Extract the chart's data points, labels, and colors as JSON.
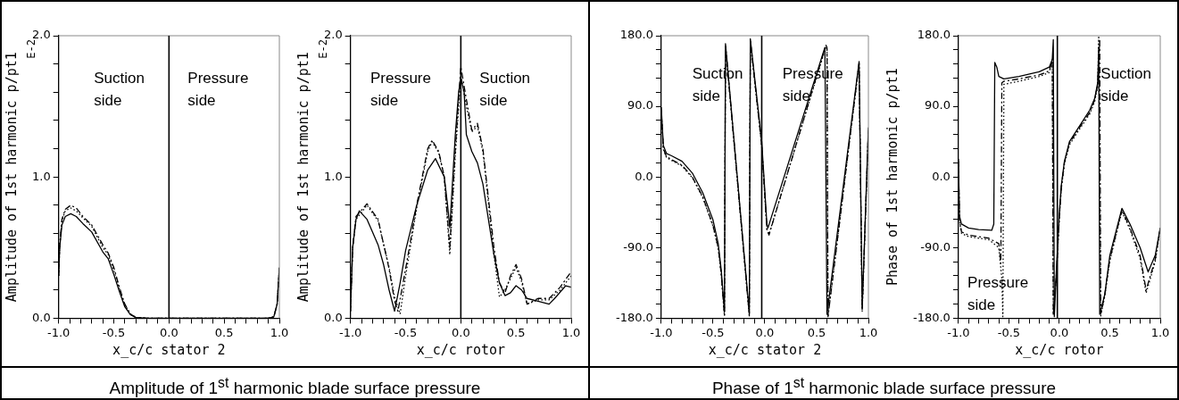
{
  "chart_data": [
    {
      "type": "line",
      "title": "Amplitude of 1$^{st}$ harmonic blade surface pressure",
      "xlabel": "x_c/c stator 2",
      "ylabel": "Amplitude of 1st harmonic p/pt1",
      "annotations": [
        "E-2",
        "Suction side",
        "Pressure side"
      ],
      "xlim": [
        -1,
        1
      ],
      "ylim": [
        0,
        2
      ],
      "xticks": [
        {
          "value": -1,
          "label": "-1.0"
        },
        {
          "value": -0.9,
          "label": null
        },
        {
          "value": -0.8,
          "label": null
        },
        {
          "value": -0.7,
          "label": null
        },
        {
          "value": -0.6,
          "label": null
        },
        {
          "value": -0.5,
          "label": "-0.5"
        },
        {
          "value": -0.4,
          "label": null
        },
        {
          "value": -0.3,
          "label": null
        },
        {
          "value": -0.2,
          "label": null
        },
        {
          "value": -0.1,
          "label": null
        },
        {
          "value": 0,
          "label": "0.0"
        },
        {
          "value": 0.1,
          "label": null
        },
        {
          "value": 0.2,
          "label": null
        },
        {
          "value": 0.3,
          "label": null
        },
        {
          "value": 0.4,
          "label": null
        },
        {
          "value": 0.5,
          "label": "0.5"
        },
        {
          "value": 0.6,
          "label": null
        },
        {
          "value": 0.7,
          "label": null
        },
        {
          "value": 0.8,
          "label": null
        },
        {
          "value": 0.9,
          "label": null
        },
        {
          "value": 1,
          "label": "1.0"
        }
      ],
      "yticks": [
        {
          "value": 0,
          "label": "0.0"
        },
        {
          "value": 0.2,
          "label": null
        },
        {
          "value": 0.4,
          "label": null
        },
        {
          "value": 0.6,
          "label": null
        },
        {
          "value": 0.8,
          "label": null
        },
        {
          "value": 1,
          "label": "1.0"
        },
        {
          "value": 1.2,
          "label": null
        },
        {
          "value": 1.4,
          "label": null
        },
        {
          "value": 1.6,
          "label": null
        },
        {
          "value": 1.8,
          "label": null
        },
        {
          "value": 2,
          "label": "2.0"
        }
      ],
      "ref_lines": [
        {
          "axis": "x",
          "value": 0,
          "color": "#000000"
        }
      ],
      "series": [
        {
          "color": "#000000",
          "line_style": "solid",
          "x": [
            -1,
            -0.99,
            -0.97,
            -0.94,
            -0.89,
            -0.84,
            -0.78,
            -0.7,
            -0.6,
            -0.55,
            -0.5,
            -0.45,
            -0.4,
            -0.35,
            -0.3,
            -0.2,
            0,
            0.5,
            0.9,
            0.95,
            0.98,
            1
          ],
          "values": [
            0.3,
            0.5,
            0.66,
            0.72,
            0.74,
            0.72,
            0.67,
            0.61,
            0.47,
            0.42,
            0.31,
            0.19,
            0.08,
            0.025,
            0.005,
            0,
            0,
            0,
            0,
            0.01,
            0.1,
            0.36
          ]
        },
        {
          "color": "#000000",
          "line_style": "dashed",
          "x": [
            -1,
            -0.99,
            -0.97,
            -0.94,
            -0.89,
            -0.84,
            -0.78,
            -0.7,
            -0.6,
            -0.55,
            -0.5,
            -0.45,
            -0.4,
            -0.35,
            -0.3,
            -0.2,
            0,
            0.5,
            0.9,
            0.95,
            0.98,
            1
          ],
          "values": [
            0.3,
            0.52,
            0.7,
            0.77,
            0.8,
            0.78,
            0.72,
            0.66,
            0.52,
            0.46,
            0.36,
            0.22,
            0.1,
            0.03,
            0.005,
            0,
            0,
            0,
            0,
            0.01,
            0.1,
            0.36
          ]
        },
        {
          "color": "#000000",
          "line_style": "dotted",
          "x": [
            -1,
            -0.99,
            -0.97,
            -0.94,
            -0.89,
            -0.84,
            -0.78,
            -0.7,
            -0.6,
            -0.55,
            -0.5,
            -0.45,
            -0.4,
            -0.35,
            -0.3,
            -0.2,
            0,
            0.5,
            0.9,
            0.95,
            0.98,
            1
          ],
          "values": [
            0.3,
            0.51,
            0.69,
            0.76,
            0.78,
            0.76,
            0.71,
            0.65,
            0.5,
            0.45,
            0.34,
            0.21,
            0.09,
            0.03,
            0.005,
            0,
            0,
            0,
            0,
            0.01,
            0.1,
            0.36
          ]
        }
      ]
    },
    {
      "type": "line",
      "xlabel": "x_c/c rotor",
      "ylabel": "Amplitude of 1st harmonic p/pt1",
      "annotations": [
        "E-2",
        "Pressure side",
        "Suction side"
      ],
      "xlim": [
        -1,
        1
      ],
      "ylim": [
        0,
        2
      ],
      "xticks": [
        {
          "value": -1,
          "label": "-1.0"
        },
        {
          "value": -0.9,
          "label": null
        },
        {
          "value": -0.8,
          "label": null
        },
        {
          "value": -0.7,
          "label": null
        },
        {
          "value": -0.6,
          "label": null
        },
        {
          "value": -0.5,
          "label": "-0.5"
        },
        {
          "value": -0.4,
          "label": null
        },
        {
          "value": -0.3,
          "label": null
        },
        {
          "value": -0.2,
          "label": null
        },
        {
          "value": -0.1,
          "label": null
        },
        {
          "value": 0,
          "label": "0.0"
        },
        {
          "value": 0.1,
          "label": null
        },
        {
          "value": 0.2,
          "label": null
        },
        {
          "value": 0.3,
          "label": null
        },
        {
          "value": 0.4,
          "label": null
        },
        {
          "value": 0.5,
          "label": "0.5"
        },
        {
          "value": 0.6,
          "label": null
        },
        {
          "value": 0.7,
          "label": null
        },
        {
          "value": 0.8,
          "label": null
        },
        {
          "value": 0.9,
          "label": null
        },
        {
          "value": 1,
          "label": "1.0"
        }
      ],
      "yticks": [
        {
          "value": 0,
          "label": "0.0"
        },
        {
          "value": 0.2,
          "label": null
        },
        {
          "value": 0.4,
          "label": null
        },
        {
          "value": 0.6,
          "label": null
        },
        {
          "value": 0.8,
          "label": null
        },
        {
          "value": 1,
          "label": "1.0"
        },
        {
          "value": 1.2,
          "label": null
        },
        {
          "value": 1.4,
          "label": null
        },
        {
          "value": 1.6,
          "label": null
        },
        {
          "value": 1.8,
          "label": null
        },
        {
          "value": 2,
          "label": "2.0"
        }
      ],
      "ref_lines": [
        {
          "axis": "x",
          "value": 0,
          "color": "#000000"
        }
      ],
      "series": [
        {
          "color": "#000000",
          "line_style": "solid",
          "x": [
            -1,
            -0.98,
            -0.95,
            -0.92,
            -0.85,
            -0.75,
            -0.7,
            -0.65,
            -0.6,
            -0.55,
            -0.5,
            -0.4,
            -0.3,
            -0.23,
            -0.15,
            -0.12,
            -0.1,
            -0.05,
            -0.02,
            0,
            0.03,
            0.05,
            0.1,
            0.15,
            0.2,
            0.25,
            0.3,
            0.35,
            0.4,
            0.45,
            0.5,
            0.55,
            0.6,
            0.7,
            0.8,
            0.85,
            0.95,
            1
          ],
          "values": [
            0.05,
            0.5,
            0.7,
            0.76,
            0.7,
            0.52,
            0.38,
            0.2,
            0.05,
            0.25,
            0.48,
            0.8,
            1.05,
            1.13,
            1.0,
            0.8,
            0.64,
            1.3,
            1.6,
            1.7,
            1.6,
            1.3,
            1.18,
            1.1,
            0.95,
            0.7,
            0.45,
            0.25,
            0.16,
            0.18,
            0.23,
            0.2,
            0.14,
            0.12,
            0.1,
            0.14,
            0.23,
            0.22
          ]
        },
        {
          "color": "#000000",
          "line_style": "dashed",
          "x": [
            -1,
            -0.98,
            -0.95,
            -0.85,
            -0.75,
            -0.65,
            -0.6,
            -0.57,
            -0.5,
            -0.4,
            -0.3,
            -0.26,
            -0.2,
            -0.15,
            -0.1,
            -0.05,
            0,
            0.05,
            0.1,
            0.15,
            0.2,
            0.3,
            0.35,
            0.4,
            0.45,
            0.5,
            0.55,
            0.6,
            0.7,
            0.8,
            0.9,
            1
          ],
          "values": [
            0.05,
            0.5,
            0.72,
            0.81,
            0.7,
            0.35,
            0.12,
            0.05,
            0.35,
            0.8,
            1.2,
            1.26,
            1.18,
            1.0,
            0.5,
            1.2,
            1.78,
            1.55,
            1.33,
            1.38,
            1.2,
            0.5,
            0.25,
            0.18,
            0.3,
            0.38,
            0.28,
            0.1,
            0.14,
            0.14,
            0.22,
            0.33
          ]
        },
        {
          "color": "#000000",
          "line_style": "dotted",
          "x": [
            -1,
            -0.98,
            -0.95,
            -0.85,
            -0.75,
            -0.65,
            -0.6,
            -0.55,
            -0.5,
            -0.4,
            -0.3,
            -0.26,
            -0.2,
            -0.15,
            -0.1,
            -0.05,
            0,
            0.05,
            0.1,
            0.15,
            0.2,
            0.3,
            0.35,
            0.4,
            0.45,
            0.5,
            0.55,
            0.6,
            0.7,
            0.8,
            0.9,
            1
          ],
          "values": [
            0.05,
            0.5,
            0.7,
            0.8,
            0.69,
            0.36,
            0.15,
            0.03,
            0.3,
            0.78,
            1.18,
            1.25,
            1.17,
            1.0,
            0.45,
            1.15,
            1.72,
            1.5,
            1.32,
            1.36,
            1.18,
            0.45,
            0.15,
            0.2,
            0.28,
            0.36,
            0.26,
            0.1,
            0.13,
            0.13,
            0.2,
            0.3
          ]
        }
      ]
    },
    {
      "type": "line",
      "title": "Phase of 1$^{st}$ harmonic blade surface pressure",
      "xlabel": "x_c/c stator 2",
      "annotations": [
        "Suction side",
        "Pressure side"
      ],
      "xlim": [
        -1,
        1
      ],
      "ylim": [
        -180,
        180
      ],
      "xticks": [
        {
          "value": -1,
          "label": "-1.0"
        },
        {
          "value": -0.9,
          "label": null
        },
        {
          "value": -0.8,
          "label": null
        },
        {
          "value": -0.7,
          "label": null
        },
        {
          "value": -0.6,
          "label": null
        },
        {
          "value": -0.5,
          "label": "-0.5"
        },
        {
          "value": -0.4,
          "label": null
        },
        {
          "value": -0.3,
          "label": null
        },
        {
          "value": -0.2,
          "label": null
        },
        {
          "value": -0.1,
          "label": null
        },
        {
          "value": 0,
          "label": "0.0"
        },
        {
          "value": 0.1,
          "label": null
        },
        {
          "value": 0.2,
          "label": null
        },
        {
          "value": 0.3,
          "label": null
        },
        {
          "value": 0.4,
          "label": null
        },
        {
          "value": 0.5,
          "label": "0.5"
        },
        {
          "value": 0.6,
          "label": null
        },
        {
          "value": 0.7,
          "label": null
        },
        {
          "value": 0.8,
          "label": null
        },
        {
          "value": 0.9,
          "label": null
        },
        {
          "value": 1,
          "label": "1.0"
        }
      ],
      "yticks": [
        {
          "value": -180,
          "label": "-180.0"
        },
        {
          "value": -162,
          "label": null
        },
        {
          "value": -144,
          "label": null
        },
        {
          "value": -126,
          "label": null
        },
        {
          "value": -108,
          "label": null
        },
        {
          "value": -90,
          "label": "-90.0"
        },
        {
          "value": -72,
          "label": null
        },
        {
          "value": -54,
          "label": null
        },
        {
          "value": -36,
          "label": null
        },
        {
          "value": -18,
          "label": null
        },
        {
          "value": 0,
          "label": "0.0"
        },
        {
          "value": 18,
          "label": null
        },
        {
          "value": 36,
          "label": null
        },
        {
          "value": 54,
          "label": null
        },
        {
          "value": 72,
          "label": null
        },
        {
          "value": 90,
          "label": "90.0"
        },
        {
          "value": 108,
          "label": null
        },
        {
          "value": 126,
          "label": null
        },
        {
          "value": 144,
          "label": null
        },
        {
          "value": 162,
          "label": null
        },
        {
          "value": 180,
          "label": "180.0"
        }
      ],
      "ref_lines": [
        {
          "axis": "x",
          "value": -0.03,
          "color": "#000000"
        }
      ],
      "series": [
        {
          "color": "#000000",
          "line_style": "solid",
          "x": [
            -1,
            -0.98,
            -0.95,
            -0.9,
            -0.8,
            -0.7,
            -0.6,
            -0.5,
            -0.45,
            -0.42,
            -0.39,
            -0.38,
            -0.15,
            -0.14,
            -0.03,
            0.02,
            0.03,
            0.57,
            0.58,
            0.6,
            0.91,
            0.94,
            1
          ],
          "values": [
            89,
            40,
            30,
            27,
            20,
            5,
            -20,
            -55,
            -85,
            -120,
            -172,
            170,
            -173,
            176,
            45,
            -60,
            -65,
            161,
            165,
            -175,
            147,
            -167,
            63
          ]
        },
        {
          "color": "#000000",
          "line_style": "dashed",
          "x": [
            -1,
            -0.98,
            -0.95,
            -0.9,
            -0.8,
            -0.7,
            -0.6,
            -0.5,
            -0.45,
            -0.42,
            -0.39,
            -0.38,
            -0.15,
            -0.14,
            -0.03,
            0.02,
            0.04,
            0.59,
            0.6,
            0.61,
            0.91,
            0.94,
            1
          ],
          "values": [
            85,
            36,
            26,
            22,
            15,
            0,
            -25,
            -62,
            -90,
            -125,
            -176,
            168,
            -176,
            174,
            40,
            -66,
            -74,
            168,
            165,
            -178,
            145,
            -170,
            60
          ]
        },
        {
          "color": "#000000",
          "line_style": "dotted",
          "x": [
            -1,
            -0.98,
            -0.95,
            -0.9,
            -0.8,
            -0.7,
            -0.6,
            -0.5,
            -0.45,
            -0.42,
            -0.39,
            -0.38,
            -0.15,
            -0.14,
            -0.03,
            0.02,
            0.04,
            0.59,
            0.6,
            0.61,
            0.91,
            0.94,
            1
          ],
          "values": [
            85,
            35,
            25,
            21,
            14,
            -1,
            -26,
            -63,
            -91,
            -126,
            -177,
            167,
            -177,
            173,
            39,
            -67,
            -73,
            166,
            163,
            -177,
            144,
            -171,
            58
          ]
        }
      ]
    },
    {
      "type": "line",
      "xlabel": "x_c/c rotor",
      "ylabel": "Phase of 1st harmonic p/pt1",
      "annotations": [
        "Suction side",
        "Pressure side"
      ],
      "xlim": [
        -1,
        1
      ],
      "ylim": [
        -180,
        180
      ],
      "xticks": [
        {
          "value": -1,
          "label": "-1.0"
        },
        {
          "value": -0.9,
          "label": null
        },
        {
          "value": -0.8,
          "label": null
        },
        {
          "value": -0.7,
          "label": null
        },
        {
          "value": -0.6,
          "label": null
        },
        {
          "value": -0.5,
          "label": "-0.5"
        },
        {
          "value": -0.4,
          "label": null
        },
        {
          "value": -0.3,
          "label": null
        },
        {
          "value": -0.2,
          "label": null
        },
        {
          "value": -0.1,
          "label": null
        },
        {
          "value": 0,
          "label": "0.0"
        },
        {
          "value": 0.1,
          "label": null
        },
        {
          "value": 0.2,
          "label": null
        },
        {
          "value": 0.3,
          "label": null
        },
        {
          "value": 0.4,
          "label": null
        },
        {
          "value": 0.5,
          "label": "0.5"
        },
        {
          "value": 0.6,
          "label": null
        },
        {
          "value": 0.7,
          "label": null
        },
        {
          "value": 0.8,
          "label": null
        },
        {
          "value": 0.9,
          "label": null
        },
        {
          "value": 1,
          "label": "1.0"
        }
      ],
      "yticks": [
        {
          "value": -180,
          "label": "-180.0"
        },
        {
          "value": -162,
          "label": null
        },
        {
          "value": -144,
          "label": null
        },
        {
          "value": -126,
          "label": null
        },
        {
          "value": -108,
          "label": null
        },
        {
          "value": -90,
          "label": "-90.0"
        },
        {
          "value": -72,
          "label": null
        },
        {
          "value": -54,
          "label": null
        },
        {
          "value": -36,
          "label": null
        },
        {
          "value": -18,
          "label": null
        },
        {
          "value": 0,
          "label": "0.0"
        },
        {
          "value": 18,
          "label": null
        },
        {
          "value": 36,
          "label": null
        },
        {
          "value": 54,
          "label": null
        },
        {
          "value": 72,
          "label": null
        },
        {
          "value": 90,
          "label": "90.0"
        },
        {
          "value": 108,
          "label": null
        },
        {
          "value": 126,
          "label": null
        },
        {
          "value": 144,
          "label": null
        },
        {
          "value": 162,
          "label": null
        },
        {
          "value": 180,
          "label": "180.0"
        }
      ],
      "ref_lines": [
        {
          "axis": "x",
          "value": -0.02,
          "color": "#000000"
        }
      ],
      "series": [
        {
          "color": "#000000",
          "line_style": "solid",
          "x": [
            -1,
            -0.99,
            -0.97,
            -0.9,
            -0.8,
            -0.67,
            -0.65,
            -0.64,
            -0.62,
            -0.6,
            -0.55,
            -0.4,
            -0.2,
            -0.1,
            -0.07,
            -0.06,
            -0.05,
            -0.03,
            0,
            0.02,
            0.05,
            0.1,
            0.2,
            0.3,
            0.35,
            0.38,
            0.39,
            0.4,
            0.45,
            0.5,
            0.62,
            0.7,
            0.8,
            0.88,
            0.95,
            1
          ],
          "values": [
            23,
            -50,
            -60,
            -65,
            -67,
            -68,
            -60,
            146,
            140,
            128,
            125,
            128,
            134,
            140,
            150,
            175,
            -178,
            -120,
            -45,
            -10,
            20,
            45,
            65,
            85,
            100,
            120,
            165,
            -175,
            -150,
            -100,
            -40,
            -60,
            -90,
            -121,
            -100,
            -65
          ]
        },
        {
          "color": "#000000",
          "line_style": "dashed",
          "x": [
            -1,
            -0.99,
            -0.97,
            -0.9,
            -0.8,
            -0.7,
            -0.6,
            -0.58,
            -0.57,
            -0.55,
            -0.4,
            -0.2,
            -0.1,
            -0.07,
            -0.06,
            -0.03,
            0,
            0.02,
            0.05,
            0.1,
            0.2,
            0.3,
            0.35,
            0.38,
            0.4,
            0.41,
            0.45,
            0.5,
            0.62,
            0.7,
            0.8,
            0.86,
            0.95,
            1
          ],
          "values": [
            20,
            -55,
            -70,
            -74,
            -76,
            -78,
            -85,
            -110,
            120,
            122,
            125,
            130,
            135,
            150,
            -175,
            -125,
            -50,
            -12,
            18,
            43,
            63,
            82,
            98,
            118,
            175,
            -175,
            -150,
            -105,
            -42,
            -65,
            -100,
            -144,
            -105,
            -65
          ]
        },
        {
          "color": "#000000",
          "line_style": "dotted",
          "x": [
            -1,
            -0.99,
            -0.97,
            -0.9,
            -0.8,
            -0.7,
            -0.6,
            -0.57,
            -0.56,
            -0.55,
            -0.4,
            -0.2,
            -0.1,
            -0.07,
            -0.06,
            -0.03,
            0,
            0.02,
            0.05,
            0.1,
            0.2,
            0.3,
            0.35,
            0.38,
            0.39,
            0.41,
            0.45,
            0.5,
            0.62,
            0.7,
            0.8,
            0.86,
            0.95,
            1
          ],
          "values": [
            20,
            -56,
            -72,
            -76,
            -78,
            -80,
            -90,
            -130,
            -178,
            118,
            122,
            128,
            133,
            148,
            -176,
            -127,
            -52,
            -14,
            16,
            41,
            61,
            80,
            96,
            116,
            178,
            -177,
            -152,
            -107,
            -44,
            -67,
            -104,
            -148,
            -108,
            -66
          ]
        }
      ]
    }
  ]
}
